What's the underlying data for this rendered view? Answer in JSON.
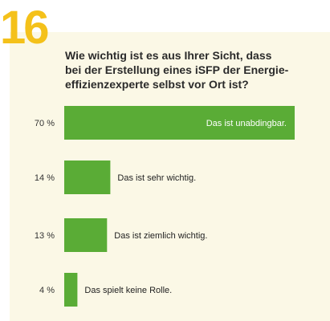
{
  "figure": {
    "number": "16",
    "question": "Wie wichtig ist es aus Ihrer Sicht, dass\nbei der Erstellung eines iSFP der Energie-\neffizienzexperte selbst vor Ort ist?"
  },
  "colors": {
    "bar": "#5aac36",
    "accent": "#f4c11a",
    "panel": "#fbf8e6"
  },
  "chart_data": {
    "type": "bar",
    "orientation": "horizontal",
    "title": "Wie wichtig ist es aus Ihrer Sicht, dass bei der Erstellung eines iSFP der Energieeffizienzexperte selbst vor Ort ist?",
    "categories": [
      "Das ist unabdingbar.",
      "Das ist sehr wichtig.",
      "Das ist ziemlich wichtig.",
      "Das spielt keine Rolle."
    ],
    "values": [
      70,
      14,
      13,
      4
    ],
    "value_labels": [
      "70 %",
      "14 %",
      "13 %",
      "4 %"
    ],
    "unit": "%",
    "xlim": [
      0,
      100
    ],
    "grid": false
  }
}
